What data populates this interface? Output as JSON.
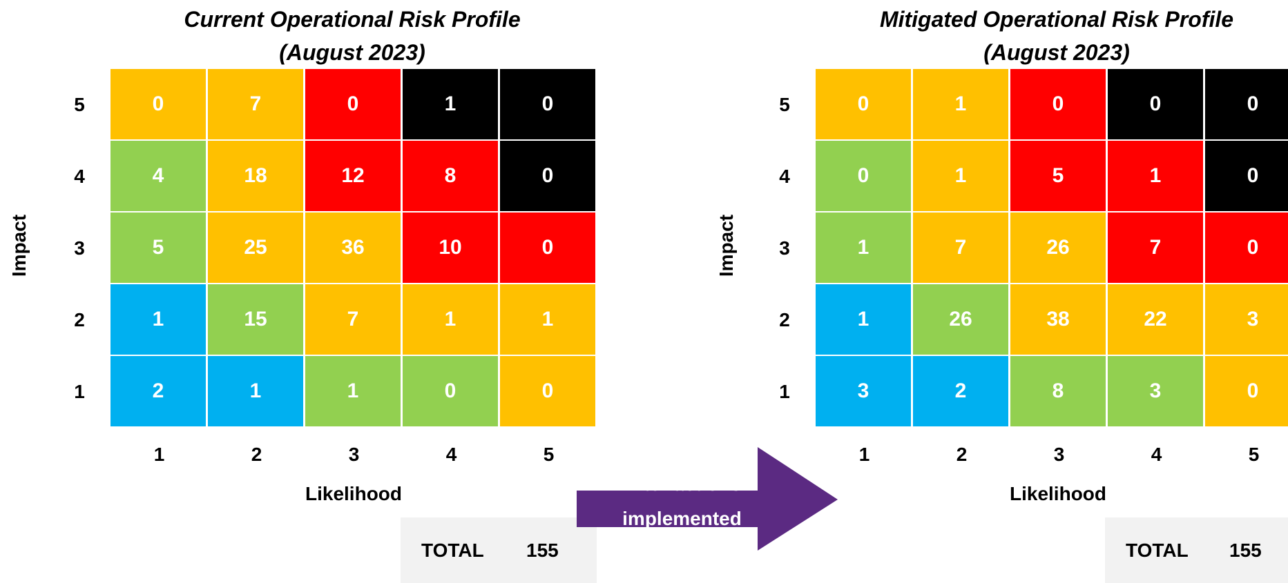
{
  "colors": {
    "blue": "#00b0f0",
    "green": "#92d050",
    "amber": "#ffc000",
    "red": "#ff0000",
    "black": "#000000",
    "arrow": "#5b2a82"
  },
  "arrow": {
    "line1": "After actions",
    "line2": "implemented"
  },
  "chart_data": [
    {
      "type": "heatmap",
      "title_line1": "Current Operational Risk Profile",
      "title_line2": "(August 2023)",
      "xlabel": "Likelihood",
      "ylabel": "Impact",
      "x": [
        "1",
        "2",
        "3",
        "4",
        "5"
      ],
      "y": [
        "5",
        "4",
        "3",
        "2",
        "1"
      ],
      "values": [
        [
          0,
          7,
          0,
          1,
          0
        ],
        [
          4,
          18,
          12,
          8,
          0
        ],
        [
          5,
          25,
          36,
          10,
          0
        ],
        [
          1,
          15,
          7,
          1,
          1
        ],
        [
          2,
          1,
          1,
          0,
          0
        ]
      ],
      "cell_colors": [
        [
          "amber",
          "amber",
          "red",
          "black",
          "black"
        ],
        [
          "green",
          "amber",
          "red",
          "red",
          "black"
        ],
        [
          "green",
          "amber",
          "amber",
          "red",
          "red"
        ],
        [
          "blue",
          "green",
          "amber",
          "amber",
          "amber"
        ],
        [
          "blue",
          "blue",
          "green",
          "green",
          "amber"
        ]
      ],
      "total_label": "TOTAL",
      "total_value": "155"
    },
    {
      "type": "heatmap",
      "title_line1": "Mitigated Operational Risk Profile",
      "title_line2": "(August 2023)",
      "xlabel": "Likelihood",
      "ylabel": "Impact",
      "x": [
        "1",
        "2",
        "3",
        "4",
        "5"
      ],
      "y": [
        "5",
        "4",
        "3",
        "2",
        "1"
      ],
      "values": [
        [
          0,
          1,
          0,
          0,
          0
        ],
        [
          0,
          1,
          5,
          1,
          0
        ],
        [
          1,
          7,
          26,
          7,
          0
        ],
        [
          1,
          26,
          38,
          22,
          3
        ],
        [
          3,
          2,
          8,
          3,
          0
        ]
      ],
      "cell_colors": [
        [
          "amber",
          "amber",
          "red",
          "black",
          "black"
        ],
        [
          "green",
          "amber",
          "red",
          "red",
          "black"
        ],
        [
          "green",
          "amber",
          "amber",
          "red",
          "red"
        ],
        [
          "blue",
          "green",
          "amber",
          "amber",
          "amber"
        ],
        [
          "blue",
          "blue",
          "green",
          "green",
          "amber"
        ]
      ],
      "total_label": "TOTAL",
      "total_value": "155"
    }
  ]
}
